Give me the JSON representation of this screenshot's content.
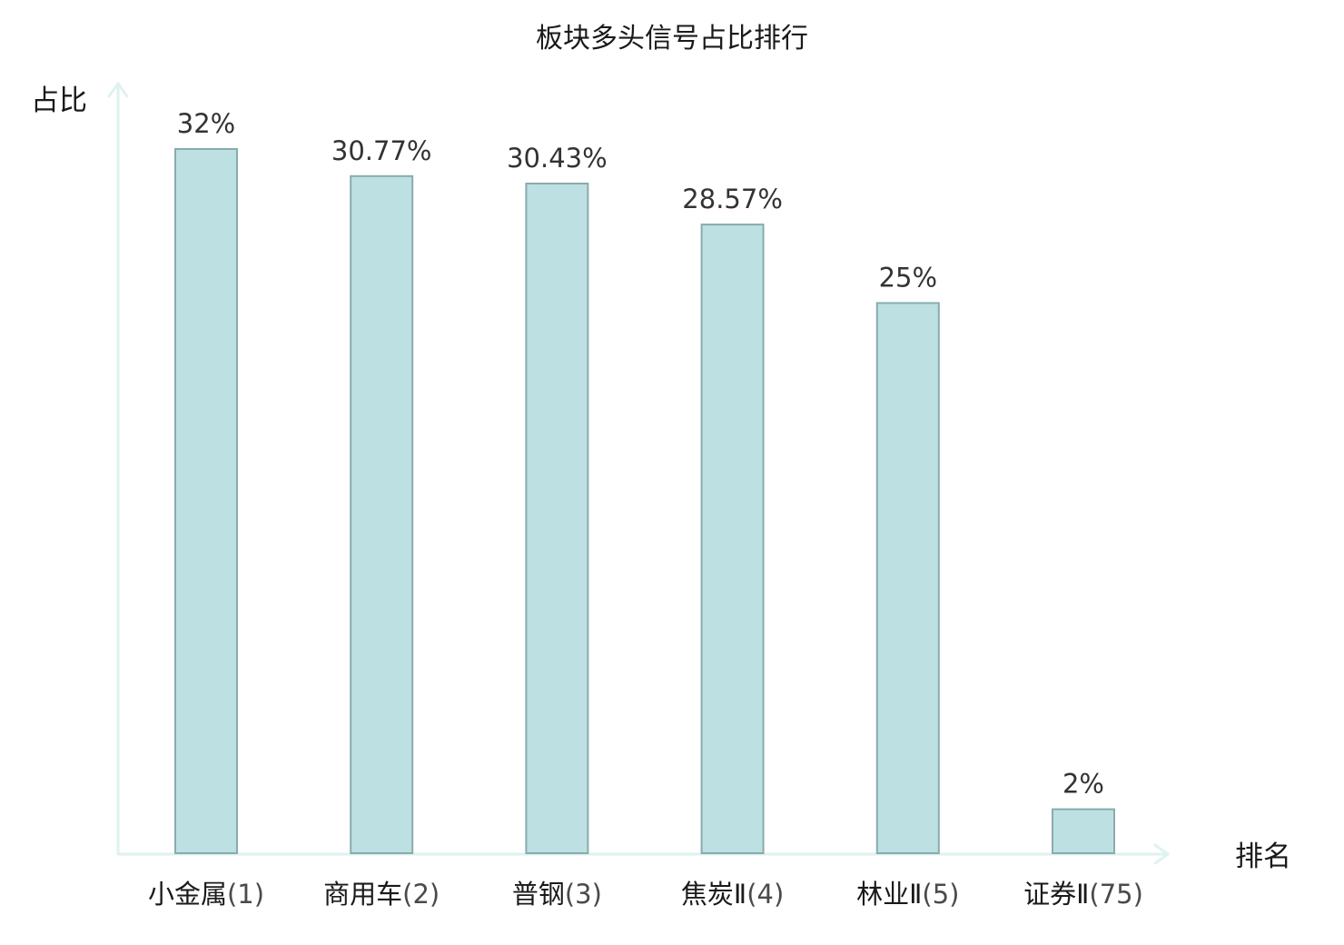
{
  "chart_data": {
    "type": "bar",
    "title": "板块多头信号占比排行",
    "ylabel": "占比",
    "xlabel": "排名",
    "categories": [
      {
        "name": "小金属",
        "rank": "(1)"
      },
      {
        "name": "商用车",
        "rank": "(2)"
      },
      {
        "name": "普钢",
        "rank": "(3)"
      },
      {
        "name": "焦炭Ⅱ",
        "rank": "(4)"
      },
      {
        "name": "林业Ⅱ",
        "rank": "(5)"
      },
      {
        "name": "证券Ⅱ",
        "rank": "(75)"
      }
    ],
    "values": [
      32,
      30.77,
      30.43,
      28.57,
      25,
      2
    ],
    "value_labels": [
      "32%",
      "30.77%",
      "30.43%",
      "28.57%",
      "25%",
      "2%"
    ],
    "highlight_index": 5,
    "ylim": [
      0,
      32
    ],
    "grid": false,
    "legend": "none",
    "colors": {
      "bar_fill": "#bde0e3",
      "bar_stroke": "#8aabad",
      "axis": "#dff2ef",
      "highlight_text": "#e0191e"
    }
  }
}
